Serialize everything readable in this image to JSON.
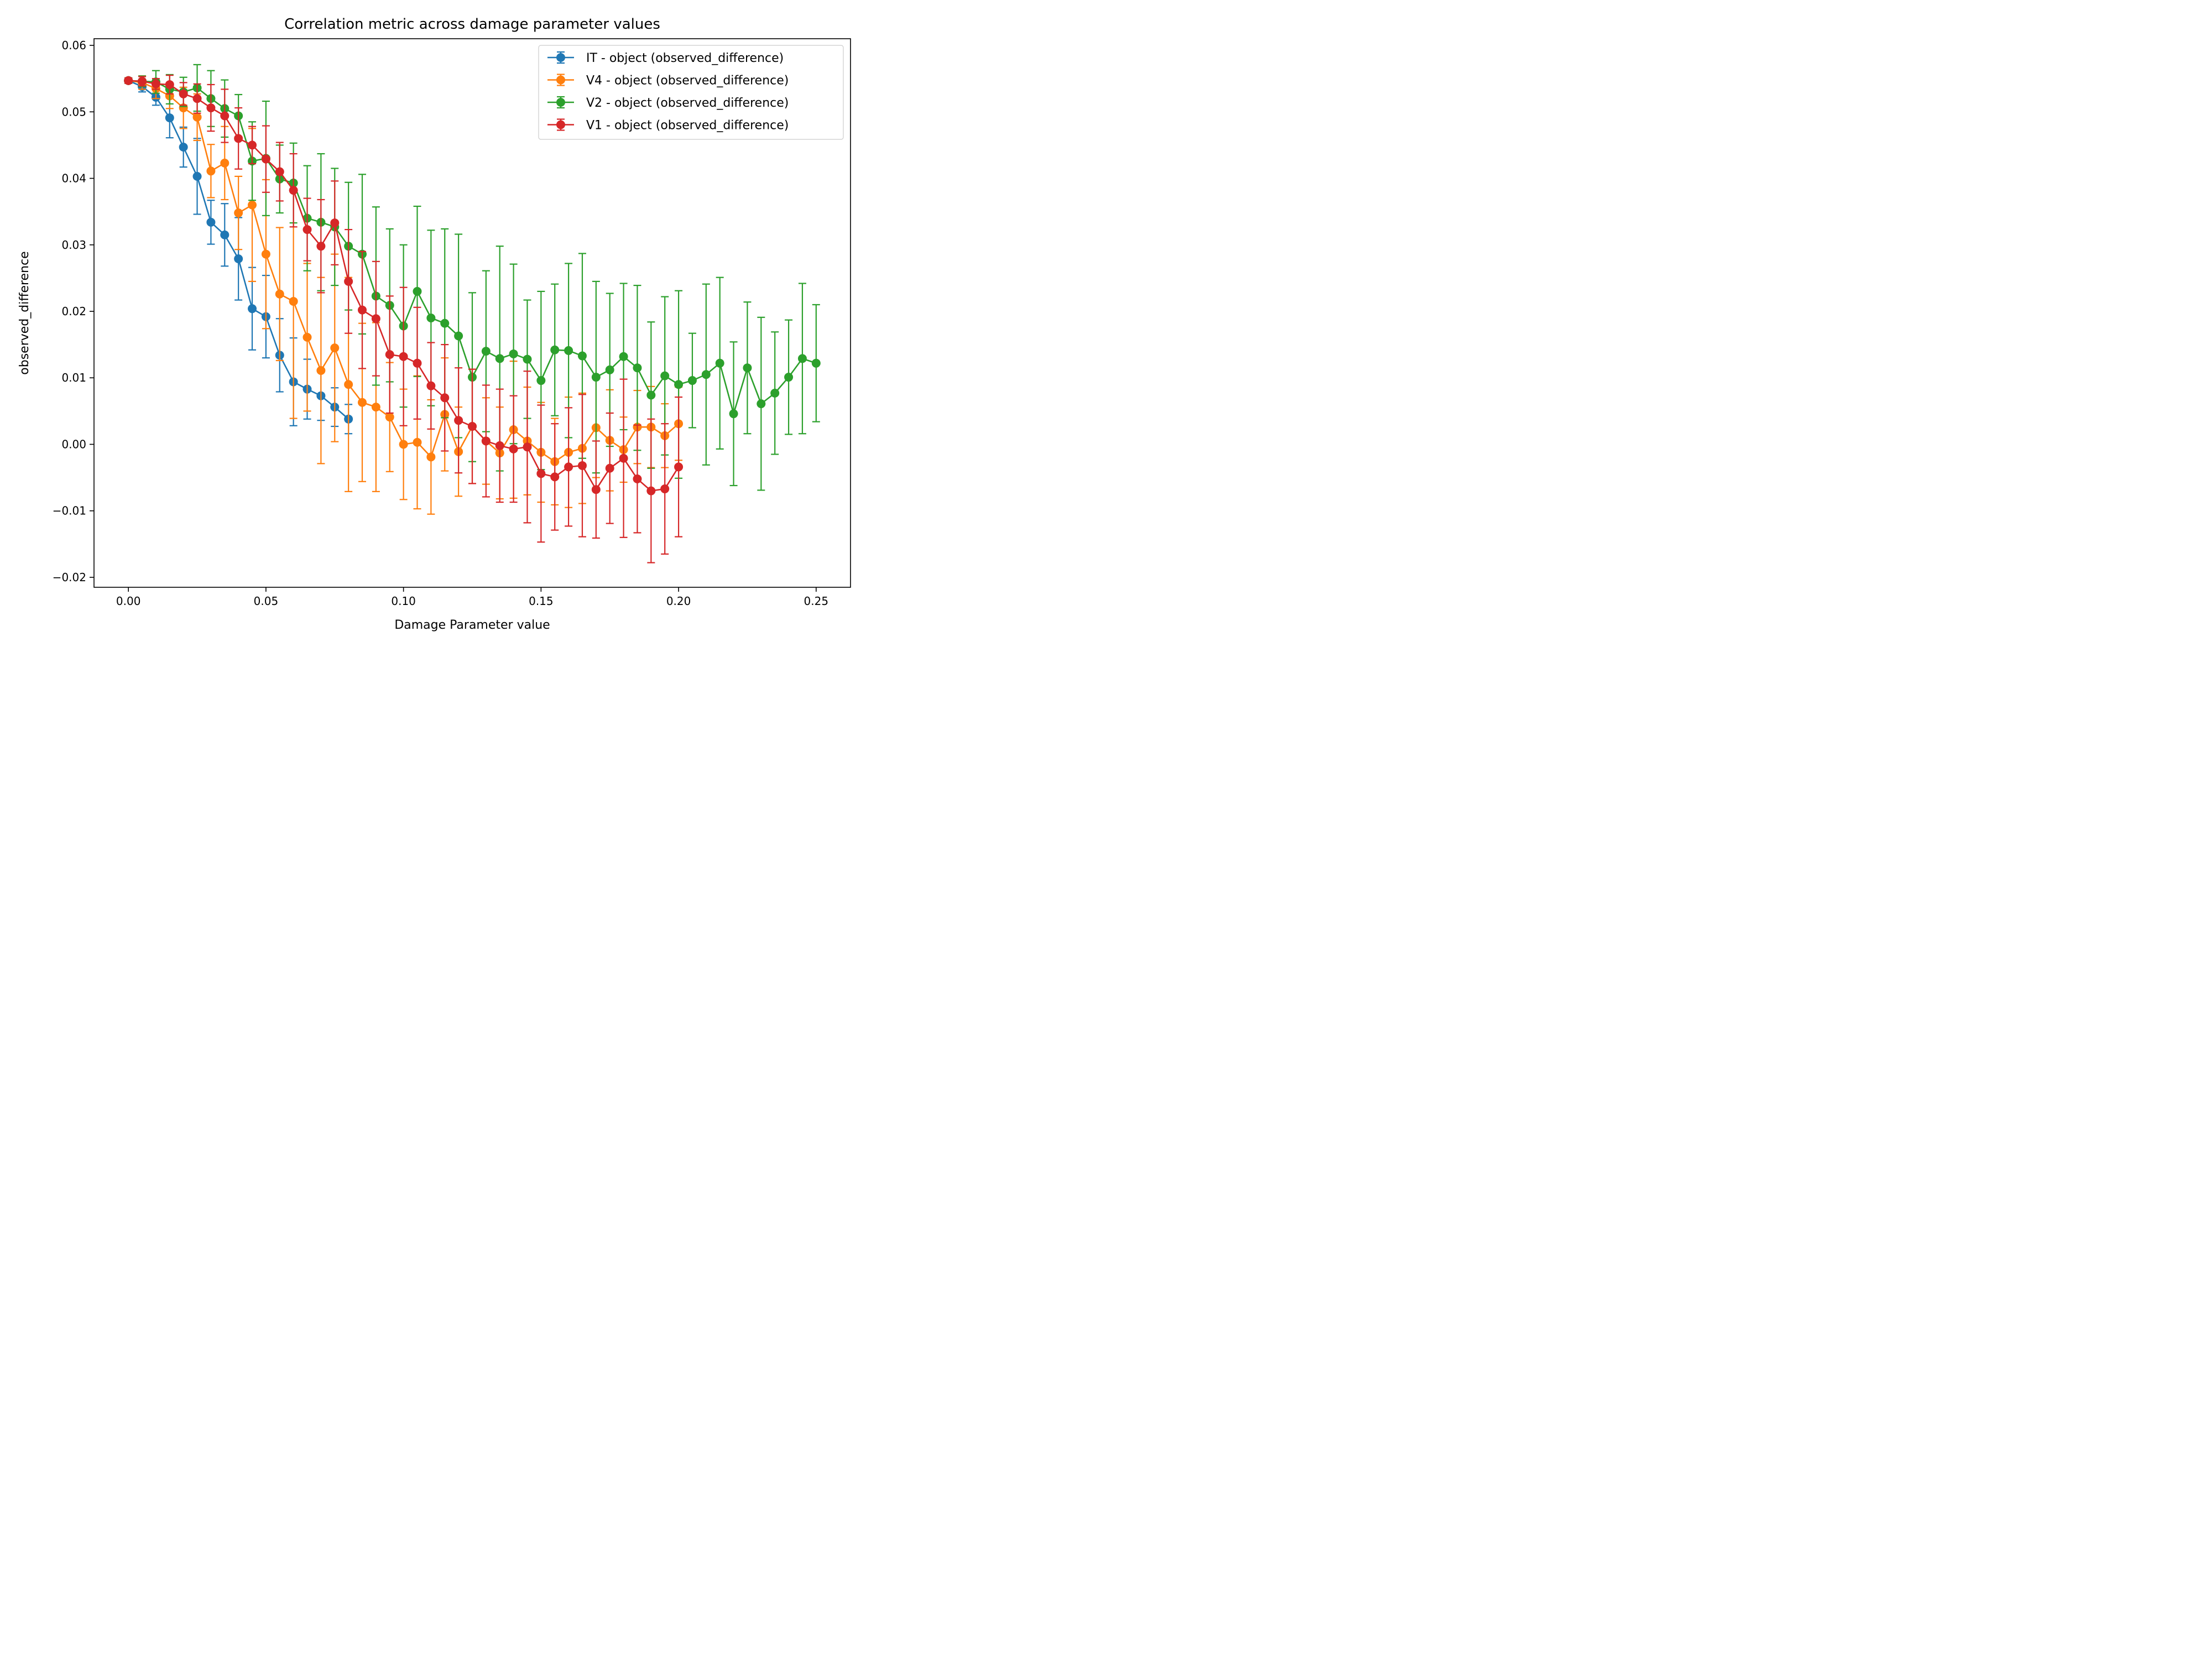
{
  "chart_data": {
    "type": "line",
    "title": "Correlation metric across damage parameter values",
    "xlabel": "Damage Parameter value",
    "ylabel": "observed_difference",
    "xlim": [
      -0.0125,
      0.2625
    ],
    "ylim": [
      -0.0215,
      0.061
    ],
    "x_ticks": [
      0.0,
      0.05,
      0.1,
      0.15,
      0.2,
      0.25
    ],
    "x_tick_labels": [
      "0.00",
      "0.05",
      "0.10",
      "0.15",
      "0.20",
      "0.25"
    ],
    "y_ticks": [
      -0.02,
      -0.01,
      0.0,
      0.01,
      0.02,
      0.03,
      0.04,
      0.05,
      0.06
    ],
    "y_tick_labels": [
      "−0.02",
      "−0.01",
      "0.00",
      "0.01",
      "0.02",
      "0.03",
      "0.04",
      "0.05",
      "0.06"
    ],
    "grid": false,
    "legend_position": "top-right",
    "error_bars": true,
    "series": [
      {
        "name": "IT - object (observed_difference)",
        "color": "#1f77b4",
        "x": [
          0.0,
          0.005,
          0.01,
          0.015,
          0.02,
          0.025,
          0.03,
          0.035,
          0.04,
          0.045,
          0.05,
          0.055,
          0.06,
          0.065,
          0.07,
          0.075,
          0.08
        ],
        "y": [
          0.0547,
          0.0538,
          0.0522,
          0.0491,
          0.0447,
          0.0403,
          0.0334,
          0.0315,
          0.0279,
          0.0204,
          0.0192,
          0.0134,
          0.0094,
          0.0083,
          0.0073,
          0.0056,
          0.0038
        ],
        "err": [
          0.0004,
          0.0008,
          0.0012,
          0.003,
          0.003,
          0.0057,
          0.0033,
          0.0047,
          0.0062,
          0.0062,
          0.0062,
          0.0055,
          0.0066,
          0.0045,
          0.0037,
          0.0029,
          0.0022
        ]
      },
      {
        "name": "V4 - object (observed_difference)",
        "color": "#ff7f0e",
        "x": [
          0.0,
          0.005,
          0.01,
          0.015,
          0.02,
          0.025,
          0.03,
          0.035,
          0.04,
          0.045,
          0.05,
          0.055,
          0.06,
          0.065,
          0.07,
          0.075,
          0.08,
          0.085,
          0.09,
          0.095,
          0.1,
          0.105,
          0.11,
          0.115,
          0.12,
          0.125,
          0.13,
          0.135,
          0.14,
          0.145,
          0.15,
          0.155,
          0.16,
          0.165,
          0.17,
          0.175,
          0.18,
          0.185,
          0.19,
          0.195,
          0.2
        ],
        "y": [
          0.0547,
          0.0544,
          0.0535,
          0.0524,
          0.0506,
          0.0492,
          0.0411,
          0.0423,
          0.0348,
          0.036,
          0.0286,
          0.0226,
          0.0215,
          0.0161,
          0.0111,
          0.0145,
          0.009,
          0.0063,
          0.0056,
          0.0041,
          0.0,
          0.0003,
          -0.0019,
          0.0045,
          -0.0011,
          0.0027,
          0.0005,
          -0.0013,
          0.0022,
          0.0005,
          -0.0012,
          -0.0026,
          -0.0012,
          -0.0006,
          0.0025,
          0.0006,
          -0.0008,
          0.0026,
          0.0026,
          0.0013,
          0.0031
        ],
        "err": [
          0.0004,
          0.001,
          0.0015,
          0.0019,
          0.0031,
          0.0035,
          0.004,
          0.0055,
          0.0055,
          0.0115,
          0.0112,
          0.01,
          0.0176,
          0.0111,
          0.014,
          0.0141,
          0.0161,
          0.0119,
          0.0127,
          0.0082,
          0.0083,
          0.01,
          0.0086,
          0.0085,
          0.0067,
          0.0086,
          0.0065,
          0.0069,
          0.0103,
          0.0081,
          0.0075,
          0.0065,
          0.0083,
          0.0083,
          0.0075,
          0.0076,
          0.0049,
          0.0055,
          0.0061,
          0.0048,
          0.0055
        ]
      },
      {
        "name": "V2 - object (observed_difference)",
        "color": "#2ca02c",
        "x": [
          0.0,
          0.005,
          0.01,
          0.015,
          0.02,
          0.025,
          0.03,
          0.035,
          0.04,
          0.045,
          0.05,
          0.055,
          0.06,
          0.065,
          0.07,
          0.075,
          0.08,
          0.085,
          0.09,
          0.095,
          0.1,
          0.105,
          0.11,
          0.115,
          0.12,
          0.125,
          0.13,
          0.135,
          0.14,
          0.145,
          0.15,
          0.155,
          0.16,
          0.165,
          0.17,
          0.175,
          0.18,
          0.185,
          0.19,
          0.195,
          0.2,
          0.205,
          0.21,
          0.215,
          0.22,
          0.225,
          0.23,
          0.235,
          0.24,
          0.245,
          0.25
        ],
        "y": [
          0.0547,
          0.0546,
          0.0545,
          0.0534,
          0.053,
          0.0536,
          0.052,
          0.0505,
          0.0494,
          0.0426,
          0.043,
          0.0399,
          0.0393,
          0.034,
          0.0334,
          0.0327,
          0.0298,
          0.0286,
          0.0223,
          0.0209,
          0.0178,
          0.023,
          0.019,
          0.0182,
          0.0163,
          0.0101,
          0.014,
          0.0129,
          0.0136,
          0.0128,
          0.0096,
          0.0142,
          0.0141,
          0.0133,
          0.0101,
          0.0112,
          0.0132,
          0.0115,
          0.0074,
          0.0103,
          0.009,
          0.0096,
          0.0105,
          0.0122,
          0.0046,
          0.0115,
          0.0061,
          0.0077,
          0.0101,
          0.0129,
          0.0122
        ],
        "err": [
          0.0004,
          0.0008,
          0.0017,
          0.0022,
          0.0022,
          0.0035,
          0.0042,
          0.0043,
          0.0032,
          0.0059,
          0.0086,
          0.0051,
          0.006,
          0.0079,
          0.0103,
          0.0088,
          0.0096,
          0.012,
          0.0134,
          0.0115,
          0.0122,
          0.0128,
          0.0132,
          0.0142,
          0.0153,
          0.0127,
          0.0121,
          0.0169,
          0.0135,
          0.0089,
          0.0134,
          0.0099,
          0.0131,
          0.0154,
          0.0144,
          0.0115,
          0.011,
          0.0124,
          0.011,
          0.0119,
          0.0141,
          0.0071,
          0.0136,
          0.0129,
          0.0108,
          0.0099,
          0.013,
          0.0092,
          0.0086,
          0.0113,
          0.0088
        ]
      },
      {
        "name": "V1 - object (observed_difference)",
        "color": "#d62728",
        "x": [
          0.0,
          0.005,
          0.01,
          0.015,
          0.02,
          0.025,
          0.03,
          0.035,
          0.04,
          0.045,
          0.05,
          0.055,
          0.06,
          0.065,
          0.07,
          0.075,
          0.08,
          0.085,
          0.09,
          0.095,
          0.1,
          0.105,
          0.11,
          0.115,
          0.12,
          0.125,
          0.13,
          0.135,
          0.14,
          0.145,
          0.15,
          0.155,
          0.16,
          0.165,
          0.17,
          0.175,
          0.18,
          0.185,
          0.19,
          0.195,
          0.2
        ],
        "y": [
          0.0547,
          0.0546,
          0.0542,
          0.0541,
          0.0527,
          0.052,
          0.0506,
          0.0494,
          0.046,
          0.045,
          0.0429,
          0.041,
          0.0382,
          0.0323,
          0.0298,
          0.0333,
          0.0245,
          0.0202,
          0.0189,
          0.0135,
          0.0132,
          0.0122,
          0.0088,
          0.007,
          0.0036,
          0.0027,
          0.0005,
          -0.0002,
          -0.0007,
          -0.0004,
          -0.0044,
          -0.0049,
          -0.0034,
          -0.0032,
          -0.0068,
          -0.0036,
          -0.0021,
          -0.0052,
          -0.007,
          -0.0067,
          -0.0034
        ],
        "err": [
          0.0004,
          0.0007,
          0.0008,
          0.0014,
          0.0017,
          0.0022,
          0.0035,
          0.004,
          0.0046,
          0.0028,
          0.005,
          0.0044,
          0.0055,
          0.0047,
          0.007,
          0.0063,
          0.0078,
          0.0088,
          0.0086,
          0.0088,
          0.0104,
          0.0084,
          0.0065,
          0.008,
          0.0079,
          0.0086,
          0.0084,
          0.0085,
          0.008,
          0.0114,
          0.0103,
          0.008,
          0.0089,
          0.0107,
          0.0073,
          0.0083,
          0.0119,
          0.0081,
          0.0108,
          0.0098,
          0.0105
        ]
      }
    ]
  }
}
